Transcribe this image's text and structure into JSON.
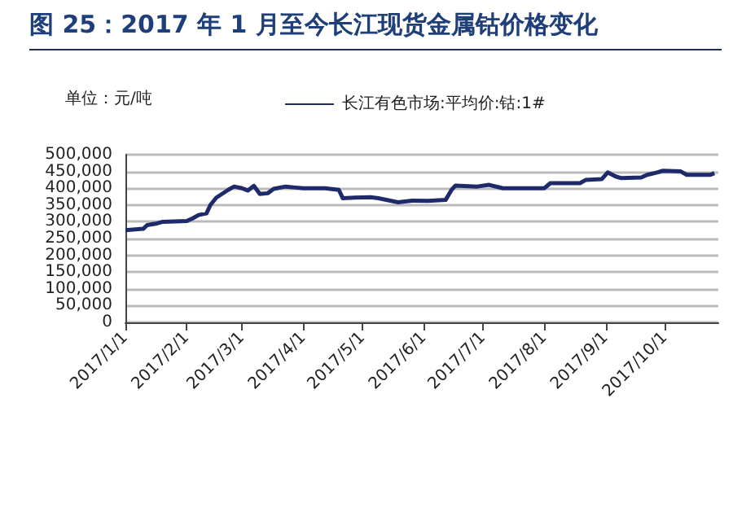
{
  "chart_data": {
    "type": "line",
    "title": "图 25：2017 年 1 月至今长江现货金属钴价格变化",
    "annotations": [
      "单位：元/吨"
    ],
    "x": [
      "2017-01-01",
      "2017-01-10",
      "2017-01-12",
      "2017-01-17",
      "2017-01-20",
      "2017-02-01",
      "2017-02-04",
      "2017-02-07",
      "2017-02-11",
      "2017-02-13",
      "2017-02-16",
      "2017-02-22",
      "2017-02-25",
      "2017-03-01",
      "2017-03-04",
      "2017-03-07",
      "2017-03-10",
      "2017-03-14",
      "2017-03-17",
      "2017-03-23",
      "2017-03-28",
      "2017-04-01",
      "2017-04-12",
      "2017-04-19",
      "2017-04-21",
      "2017-04-27",
      "2017-05-05",
      "2017-05-09",
      "2017-05-19",
      "2017-05-26",
      "2017-06-03",
      "2017-06-12",
      "2017-06-15",
      "2017-06-17",
      "2017-06-28",
      "2017-07-04",
      "2017-07-11",
      "2017-07-20",
      "2017-08-01",
      "2017-08-04",
      "2017-08-19",
      "2017-08-22",
      "2017-08-30",
      "2017-09-02",
      "2017-09-06",
      "2017-09-09",
      "2017-09-19",
      "2017-09-22",
      "2017-09-27",
      "2017-09-30",
      "2017-10-09",
      "2017-10-12",
      "2017-10-24",
      "2017-10-26"
    ],
    "series": [
      {
        "name": "长江有色市场:平均价:钴:1#",
        "color": "#1f2a6b",
        "values": [
          275000,
          279000,
          290000,
          295000,
          300000,
          302000,
          310000,
          320000,
          325000,
          350000,
          372000,
          395000,
          405000,
          400000,
          393000,
          407000,
          383000,
          385000,
          398000,
          405000,
          402000,
          400000,
          400000,
          395000,
          370000,
          372000,
          373000,
          370000,
          358000,
          363000,
          362000,
          365000,
          395000,
          408000,
          405000,
          410000,
          400000,
          400000,
          400000,
          415000,
          415000,
          425000,
          427000,
          447000,
          435000,
          430000,
          432000,
          440000,
          447000,
          452000,
          450000,
          440000,
          440000,
          445000
        ]
      }
    ],
    "xlim": [
      "2017-01-01",
      "2017-10-28"
    ],
    "xticks": [
      {
        "value": "2017-01-01",
        "label": "2017/1/1"
      },
      {
        "value": "2017-02-01",
        "label": "2017/2/1"
      },
      {
        "value": "2017-03-01",
        "label": "2017/3/1"
      },
      {
        "value": "2017-04-01",
        "label": "2017/4/1"
      },
      {
        "value": "2017-05-01",
        "label": "2017/5/1"
      },
      {
        "value": "2017-06-01",
        "label": "2017/6/1"
      },
      {
        "value": "2017-07-01",
        "label": "2017/7/1"
      },
      {
        "value": "2017-08-01",
        "label": "2017/8/1"
      },
      {
        "value": "2017-09-01",
        "label": "2017/9/1"
      },
      {
        "value": "2017-10-01",
        "label": "2017/10/1"
      }
    ],
    "ylim": [
      0,
      500000
    ],
    "yticks": [
      0,
      {
        "value": 50000,
        "label": "50,000"
      },
      {
        "value": 100000,
        "label": "100,000"
      },
      {
        "value": 150000,
        "label": "150,000"
      },
      {
        "value": 200000,
        "label": "200,000"
      },
      {
        "value": 250000,
        "label": "250,000"
      },
      {
        "value": 300000,
        "label": "300,000"
      },
      {
        "value": 350000,
        "label": "350,000"
      },
      {
        "value": 400000,
        "label": "400,000"
      },
      {
        "value": 450000,
        "label": "450,000"
      },
      {
        "value": 500000,
        "label": "500,000"
      }
    ],
    "grid": "y",
    "legend": "top",
    "marker": "none",
    "line_style": "solid"
  }
}
